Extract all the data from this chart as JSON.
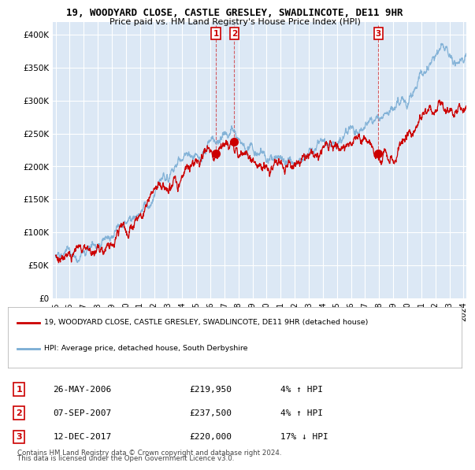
{
  "title_line1": "19, WOODYARD CLOSE, CASTLE GRESLEY, SWADLINCOTE, DE11 9HR",
  "title_line2": "Price paid vs. HM Land Registry's House Price Index (HPI)",
  "background_color": "#ffffff",
  "plot_bg_color": "#dce8f5",
  "grid_color": "#ffffff",
  "red_line_color": "#cc0000",
  "blue_line_color": "#7aadd4",
  "legend_label_red": "19, WOODYARD CLOSE, CASTLE GRESLEY, SWADLINCOTE, DE11 9HR (detached house)",
  "legend_label_blue": "HPI: Average price, detached house, South Derbyshire",
  "transactions": [
    {
      "label": "1",
      "date": "26-MAY-2006",
      "price": 219950,
      "x": 2006.4,
      "pct": "4%",
      "dir": "↑"
    },
    {
      "label": "2",
      "date": "07-SEP-2007",
      "price": 237500,
      "x": 2007.7,
      "pct": "4%",
      "dir": "↑"
    },
    {
      "label": "3",
      "date": "12-DEC-2017",
      "price": 220000,
      "x": 2017.95,
      "pct": "17%",
      "dir": "↓"
    }
  ],
  "footnote1": "Contains HM Land Registry data © Crown copyright and database right 2024.",
  "footnote2": "This data is licensed under the Open Government Licence v3.0.",
  "ylim_max": 420000,
  "ylim_min": 0,
  "year_start": 1995,
  "year_end": 2025
}
